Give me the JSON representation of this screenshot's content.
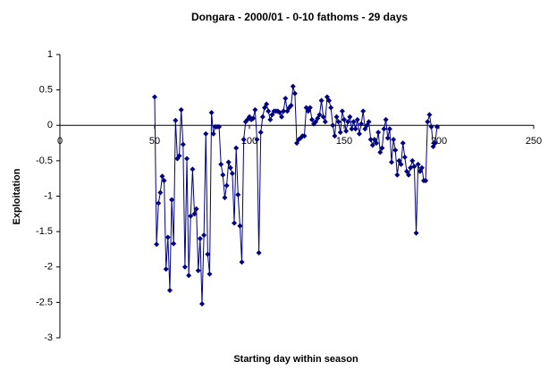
{
  "chart_data": {
    "type": "line",
    "title": "Dongara - 2000/01 - 0-10 fathoms - 29 days",
    "xlabel": "Starting day within season",
    "ylabel": "Exploitation",
    "x": [
      50,
      51,
      52,
      53,
      54,
      55,
      56,
      57,
      58,
      59,
      60,
      61,
      62,
      63,
      64,
      65,
      66,
      67,
      68,
      69,
      70,
      71,
      72,
      73,
      74,
      75,
      76,
      77,
      78,
      79,
      80,
      81,
      82,
      83,
      84,
      85,
      86,
      87,
      88,
      89,
      90,
      91,
      92,
      93,
      94,
      95,
      96,
      97,
      98,
      99,
      100,
      101,
      102,
      103,
      104,
      105,
      106,
      107,
      108,
      109,
      110,
      111,
      112,
      113,
      114,
      115,
      116,
      117,
      118,
      119,
      120,
      121,
      122,
      123,
      124,
      125,
      126,
      127,
      128,
      129,
      130,
      131,
      132,
      133,
      134,
      135,
      136,
      137,
      138,
      139,
      140,
      141,
      142,
      143,
      144,
      145,
      146,
      147,
      148,
      149,
      150,
      151,
      152,
      153,
      154,
      155,
      156,
      157,
      158,
      159,
      160,
      161,
      162,
      163,
      164,
      165,
      166,
      167,
      168,
      169,
      170,
      171,
      172,
      173,
      174,
      175,
      176,
      177,
      178,
      179,
      180,
      181,
      182,
      183,
      184,
      185,
      186,
      187,
      188,
      189,
      190,
      191,
      192,
      193,
      194,
      195,
      196,
      197,
      198,
      199
    ],
    "series": [
      {
        "name": "Exploitation",
        "color": "#000080",
        "values": [
          0.4,
          -1.68,
          -1.1,
          -0.95,
          -0.72,
          -0.78,
          -2.03,
          -1.58,
          -2.33,
          -1.05,
          -1.67,
          0.07,
          -0.47,
          -0.43,
          0.22,
          -0.27,
          -2.0,
          -0.47,
          -2.12,
          -1.28,
          -0.62,
          -1.25,
          -1.18,
          -2.05,
          -1.6,
          -2.52,
          -1.55,
          -0.12,
          -1.82,
          -2.1,
          0.18,
          -0.12,
          -0.02,
          -0.02,
          -0.02,
          -0.55,
          -0.7,
          -1.02,
          -0.85,
          -0.52,
          -0.6,
          -0.68,
          -1.38,
          -0.32,
          -0.98,
          -1.42,
          -1.93,
          -0.2,
          0.05,
          0.08,
          0.12,
          0.08,
          0.1,
          0.22,
          -0.2,
          -1.8,
          -0.1,
          0.12,
          0.25,
          0.3,
          0.2,
          0.08,
          0.15,
          0.2,
          0.2,
          0.2,
          0.18,
          0.12,
          0.2,
          0.38,
          0.2,
          0.25,
          0.28,
          0.55,
          0.45,
          -0.25,
          -0.2,
          -0.18,
          -0.15,
          -0.15,
          0.25,
          0.2,
          0.25,
          0.08,
          0.02,
          0.05,
          0.1,
          0.15,
          0.35,
          0.12,
          0.05,
          0.4,
          0.35,
          0.25,
          0.0,
          -0.15,
          0.12,
          0.05,
          -0.1,
          0.2,
          0.08,
          -0.08,
          0.05,
          0.12,
          -0.05,
          0.05,
          -0.05,
          0.08,
          -0.12,
          0.02,
          0.2,
          -0.05,
          0.0,
          0.05,
          -0.2,
          -0.28,
          -0.2,
          -0.25,
          -0.1,
          -0.38,
          -0.32,
          -0.05,
          0.08,
          -0.18,
          -0.05,
          -0.52,
          -0.2,
          -0.35,
          -0.7,
          -0.5,
          -0.55,
          -0.25,
          -0.45,
          -0.65,
          -0.7,
          -0.6,
          -0.5,
          -0.58,
          -1.52,
          -0.55,
          -0.65,
          -0.6,
          -0.78,
          -0.78,
          0.05,
          0.15,
          -0.02,
          -0.3,
          -0.25,
          -0.02
        ]
      }
    ],
    "xlim": [
      0,
      250
    ],
    "xticks": [
      0,
      50,
      100,
      150,
      200,
      250
    ],
    "ylim": [
      -3,
      1
    ],
    "yticks": [
      1,
      0.5,
      0,
      -0.5,
      -1,
      -1.5,
      -2,
      -2.5,
      -3
    ]
  }
}
